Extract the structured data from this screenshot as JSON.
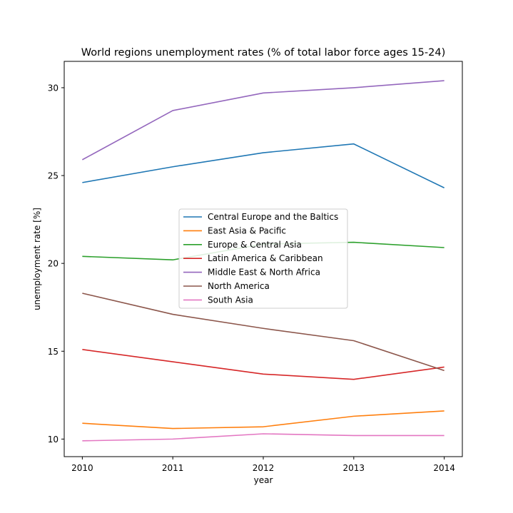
{
  "chart_data": {
    "type": "line",
    "title": "World regions unemployment rates (% of total labor force ages 15-24)",
    "xlabel": "year",
    "ylabel": "unemployment rate [%]",
    "x": [
      2010,
      2011,
      2012,
      2013,
      2014
    ],
    "x_ticks": [
      "2010",
      "2011",
      "2012",
      "2013",
      "2014"
    ],
    "y_ticks": [
      10,
      15,
      20,
      25,
      30
    ],
    "y_tick_labels": [
      "10",
      "15",
      "20",
      "25",
      "30"
    ],
    "xlim": [
      2009.8,
      2014.2
    ],
    "ylim": [
      9.0,
      31.5
    ],
    "grid": false,
    "legend_position": "center",
    "series": [
      {
        "name": "Central Europe and the Baltics",
        "color": "#1f77b4",
        "values": [
          24.6,
          25.5,
          26.3,
          26.8,
          24.3
        ]
      },
      {
        "name": "East Asia & Pacific",
        "color": "#ff7f0e",
        "values": [
          10.9,
          10.6,
          10.7,
          11.3,
          11.6
        ]
      },
      {
        "name": "Europe & Central Asia",
        "color": "#2ca02c",
        "values": [
          20.4,
          20.2,
          21.1,
          21.2,
          20.9
        ]
      },
      {
        "name": "Latin America & Caribbean",
        "color": "#d62728",
        "values": [
          15.1,
          14.4,
          13.7,
          13.4,
          14.1
        ]
      },
      {
        "name": "Middle East & North Africa",
        "color": "#9467bd",
        "values": [
          25.9,
          28.7,
          29.7,
          30.0,
          30.4
        ]
      },
      {
        "name": "North America",
        "color": "#8c564b",
        "values": [
          18.3,
          17.1,
          16.3,
          15.6,
          13.9
        ]
      },
      {
        "name": "South Asia",
        "color": "#e377c2",
        "values": [
          9.9,
          10.0,
          10.3,
          10.2,
          10.2
        ]
      }
    ]
  }
}
